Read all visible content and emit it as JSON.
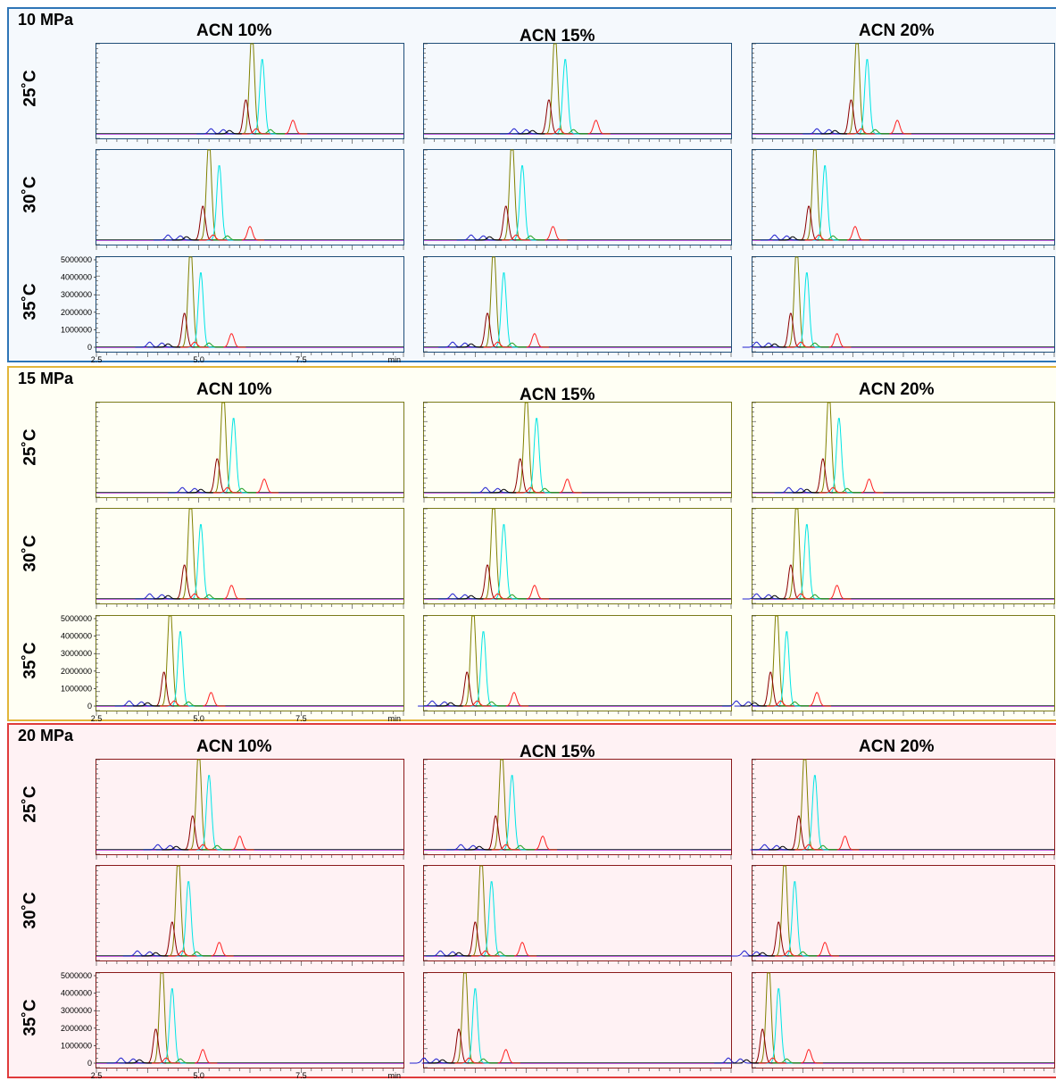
{
  "groups": [
    {
      "pressure": "10 MPa",
      "bg": "#f5f9fd",
      "border": "#2e75b6",
      "shift": 0.0
    },
    {
      "pressure": "15 MPa",
      "bg": "#fffff4",
      "border": "#e2b53a",
      "shift": -0.35
    },
    {
      "pressure": "20 MPa",
      "bg": "#fff2f4",
      "border": "#e03b3b",
      "shift": -0.5
    }
  ],
  "acn_labels": [
    "ACN 10%",
    "ACN 15%",
    "ACN 20%"
  ],
  "temp_labels": [
    "25˚C",
    "30˚C",
    "35˚C"
  ],
  "chart_data": {
    "type": "line",
    "xlabel": "min",
    "x_ticks": [
      "2.5",
      "5.0",
      "7.5"
    ],
    "xlim": [
      2.5,
      10.0
    ],
    "y_ticks": [
      "5000000",
      "4000000",
      "3000000",
      "2000000",
      "1000000",
      "0"
    ],
    "ylim": [
      0,
      5000000
    ],
    "series_colors": [
      "#808000",
      "#00e5e5",
      "#8b0000",
      "#ff2020",
      "#2020d0",
      "#20a020",
      "#000000",
      "#9900cc"
    ],
    "base_peaks": {
      "10": {
        "25": 6.3,
        "30": 5.25,
        "35": 4.8
      },
      "15": {
        "25": 5.6,
        "30": 4.8,
        "35": 4.3
      },
      "20": {
        "25": 5.0,
        "30": 4.5,
        "35": 4.1
      }
    },
    "peak_profile": [
      {
        "series": 0,
        "offset": 0.0,
        "height": 6000000
      },
      {
        "series": 1,
        "offset": 0.25,
        "height": 4400000
      },
      {
        "series": 2,
        "offset": -0.15,
        "height": 2000000
      },
      {
        "series": 3,
        "offset": 1.0,
        "height": 800000
      },
      {
        "series": 4,
        "offset": -1.0,
        "height": 300000
      },
      {
        "series": 4,
        "offset": -0.7,
        "height": 250000
      },
      {
        "series": 5,
        "offset": 0.45,
        "height": 250000
      },
      {
        "series": 6,
        "offset": -0.55,
        "height": 200000
      },
      {
        "series": 3,
        "offset": 0.1,
        "height": 300000
      }
    ]
  }
}
